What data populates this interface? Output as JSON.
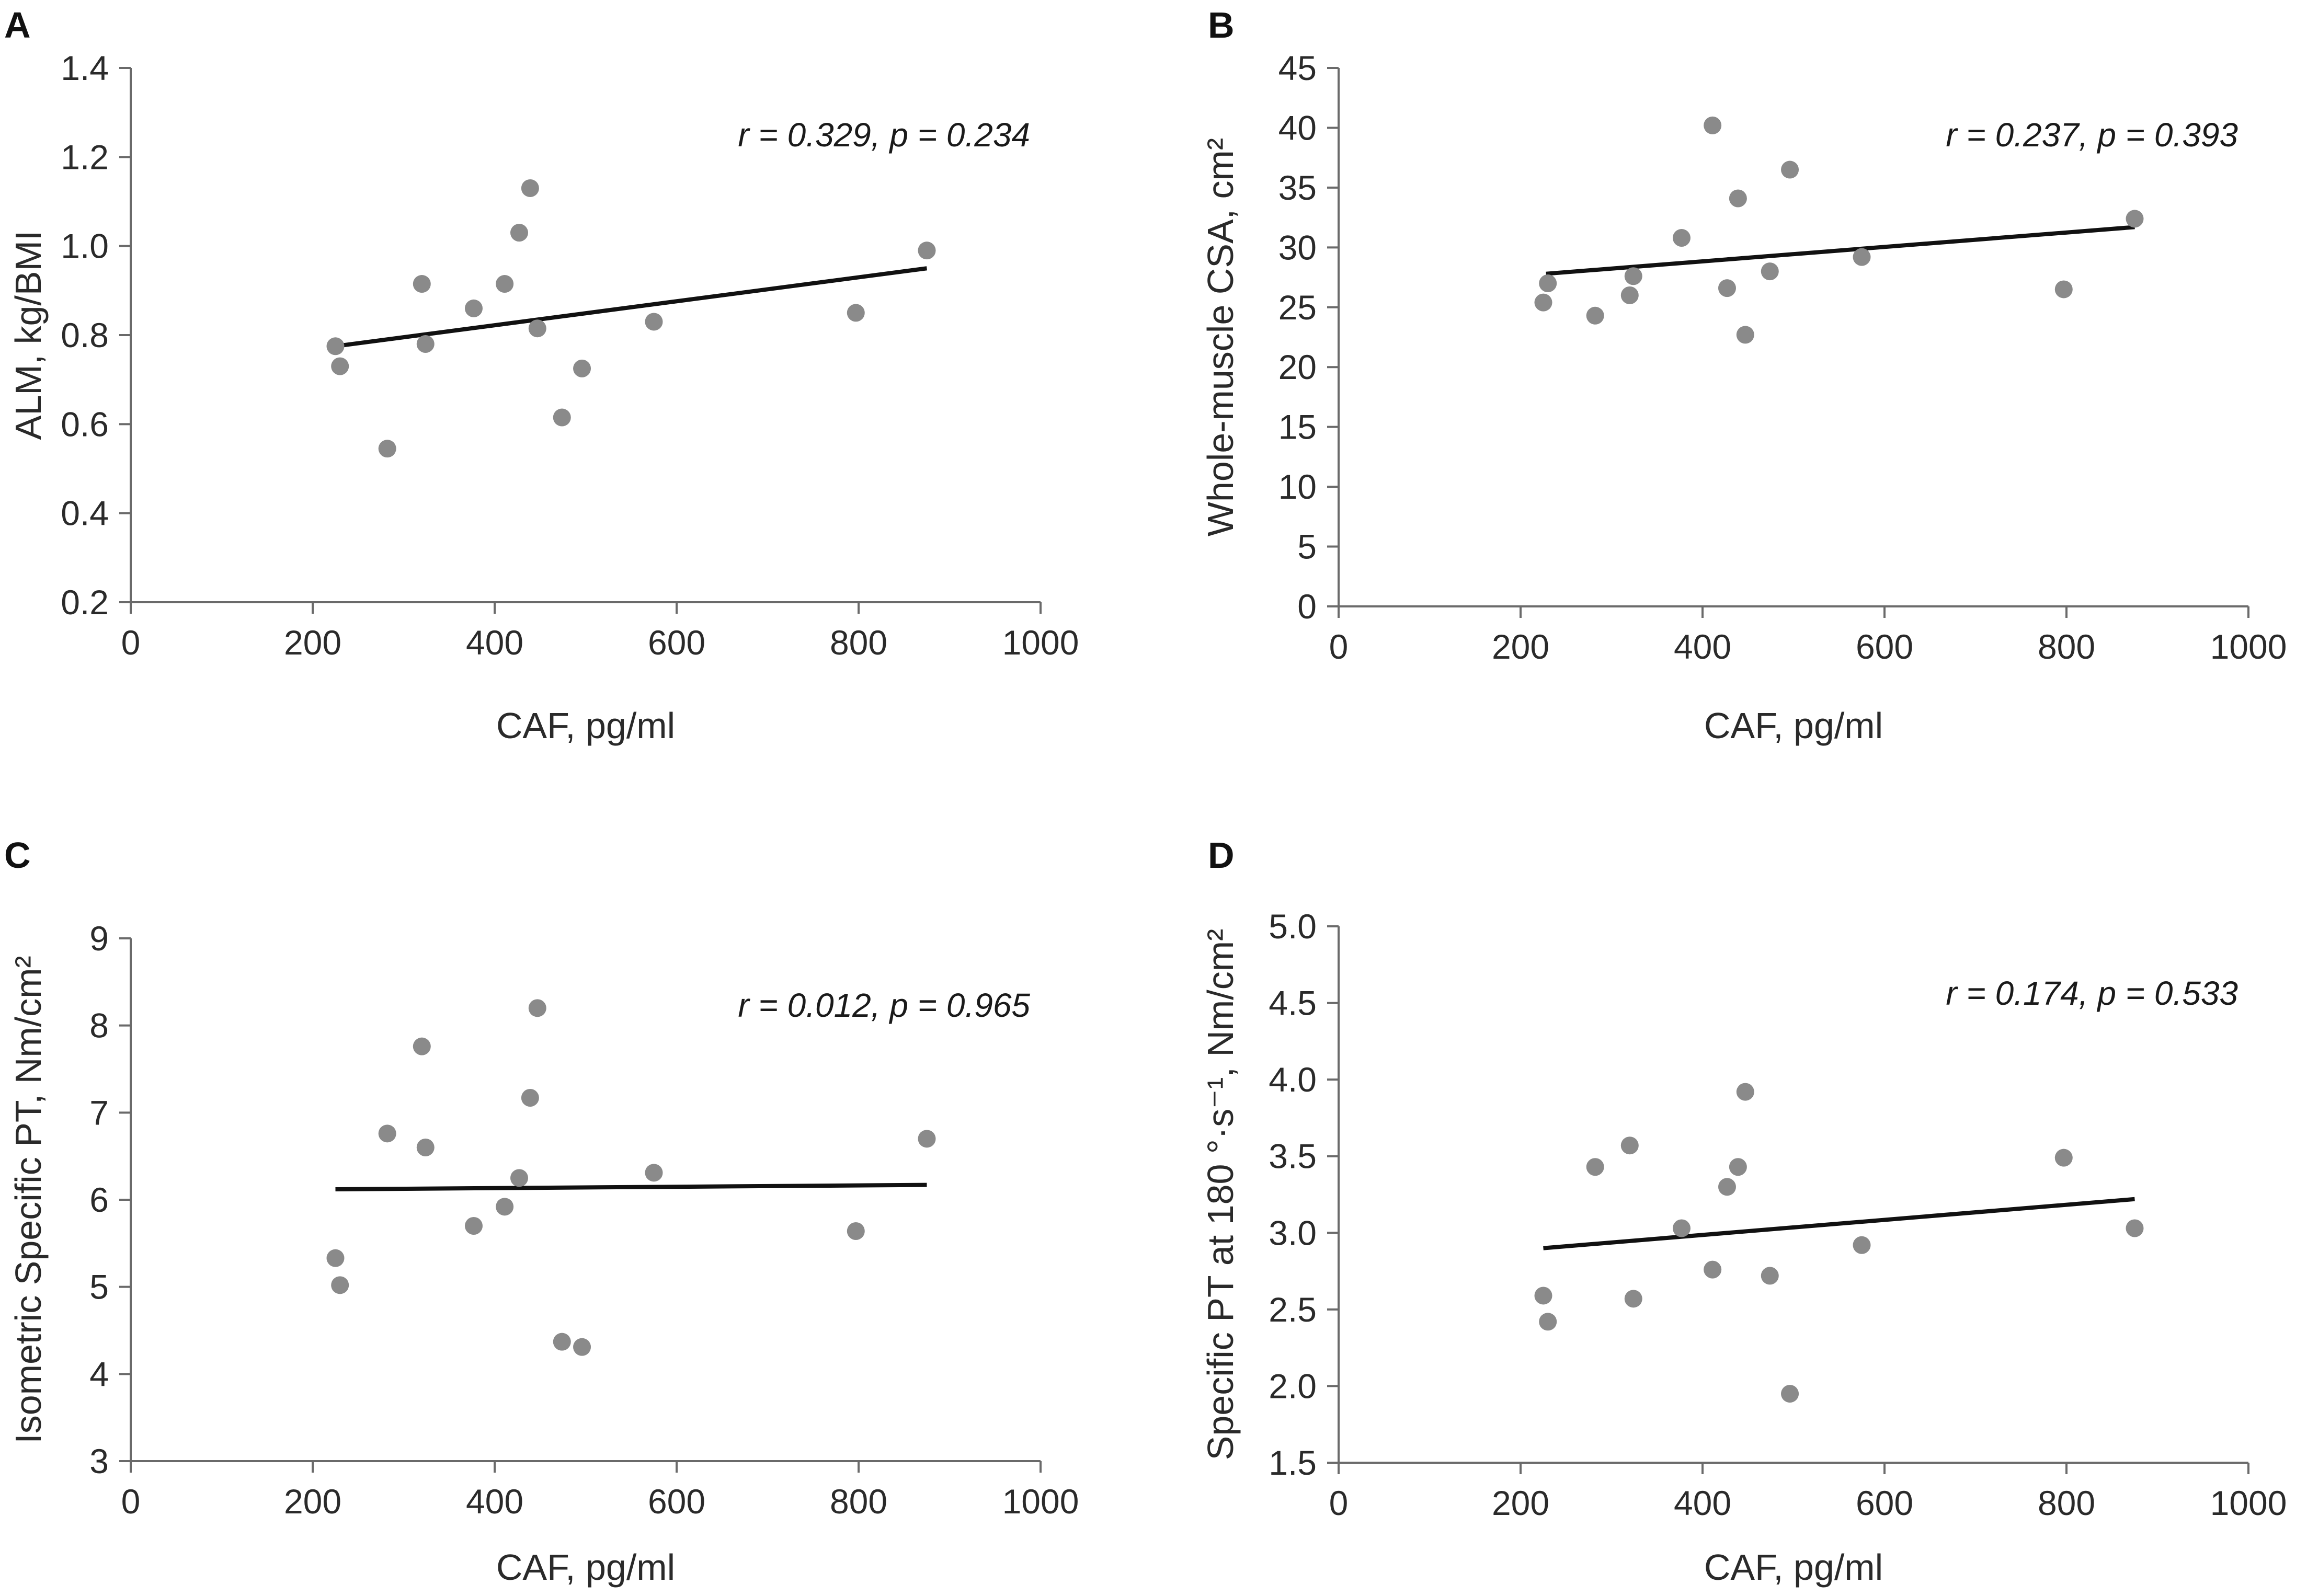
{
  "figure": {
    "point_color": "#8a8a8a",
    "line_color": "#111111",
    "axis_color": "#6a6a6a"
  },
  "chart_data": [
    {
      "panel": "A",
      "type": "scatter",
      "xlabel": "CAF, pg/ml",
      "ylabel": "ALM, kg/BMI",
      "annotation": "r = 0.329, p = 0.234",
      "xlim": [
        0,
        1000
      ],
      "ylim": [
        0.2,
        1.4
      ],
      "xticks": [
        0,
        200,
        400,
        600,
        800,
        1000
      ],
      "xtick_labels": [
        "0",
        "200",
        "400",
        "600",
        "800",
        "1000"
      ],
      "yticks": [
        0.2,
        0.4,
        0.6,
        0.8,
        1.0,
        1.2,
        1.4
      ],
      "ytick_labels": [
        "0.2",
        "0.4",
        "0.6",
        "0.8",
        "1.0",
        "1.2",
        "1.4"
      ],
      "points": [
        [
          225,
          0.775
        ],
        [
          230,
          0.73
        ],
        [
          282,
          0.545
        ],
        [
          320,
          0.915
        ],
        [
          324,
          0.78
        ],
        [
          377,
          0.86
        ],
        [
          411,
          0.915
        ],
        [
          427,
          1.03
        ],
        [
          439,
          1.13
        ],
        [
          447,
          0.815
        ],
        [
          474,
          0.615
        ],
        [
          496,
          0.725
        ],
        [
          575,
          0.83
        ],
        [
          797,
          0.85
        ],
        [
          875,
          0.99
        ]
      ],
      "trendline": [
        [
          225,
          0.775
        ],
        [
          875,
          0.95
        ]
      ]
    },
    {
      "panel": "B",
      "type": "scatter",
      "xlabel": "CAF, pg/ml",
      "ylabel": "Whole-muscle CSA, cm²",
      "annotation": "r = 0.237, p = 0.393",
      "xlim": [
        0,
        1000
      ],
      "ylim": [
        0,
        45
      ],
      "xticks": [
        0,
        200,
        400,
        600,
        800,
        1000
      ],
      "xtick_labels": [
        "0",
        "200",
        "400",
        "600",
        "800",
        "1000"
      ],
      "yticks": [
        0,
        5,
        10,
        15,
        20,
        25,
        30,
        35,
        40,
        45
      ],
      "ytick_labels": [
        "0",
        "5",
        "10",
        "15",
        "20",
        "25",
        "30",
        "35",
        "40",
        "45"
      ],
      "points": [
        [
          225,
          25.4
        ],
        [
          230,
          27.0
        ],
        [
          282,
          24.3
        ],
        [
          320,
          26.0
        ],
        [
          324,
          27.6
        ],
        [
          377,
          30.8
        ],
        [
          411,
          40.2
        ],
        [
          427,
          26.6
        ],
        [
          439,
          34.1
        ],
        [
          447,
          22.7
        ],
        [
          474,
          28.0
        ],
        [
          496,
          36.5
        ],
        [
          575,
          29.2
        ],
        [
          797,
          26.5
        ],
        [
          875,
          32.4
        ]
      ],
      "trendline": [
        [
          228,
          27.8
        ],
        [
          875,
          31.7
        ]
      ]
    },
    {
      "panel": "C",
      "type": "scatter",
      "xlabel": "CAF, pg/ml",
      "ylabel": "Isometric Specific PT, Nm/cm²",
      "annotation": "r = 0.012, p = 0.965",
      "xlim": [
        0,
        1000
      ],
      "ylim": [
        3,
        9
      ],
      "xticks": [
        0,
        200,
        400,
        600,
        800,
        1000
      ],
      "xtick_labels": [
        "0",
        "200",
        "400",
        "600",
        "800",
        "1000"
      ],
      "yticks": [
        3,
        4,
        5,
        6,
        7,
        8,
        9
      ],
      "ytick_labels": [
        "3",
        "4",
        "5",
        "6",
        "7",
        "8",
        "9"
      ],
      "points": [
        [
          225,
          5.33
        ],
        [
          230,
          5.02
        ],
        [
          282,
          6.76
        ],
        [
          320,
          7.76
        ],
        [
          324,
          6.6
        ],
        [
          377,
          5.7
        ],
        [
          411,
          5.92
        ],
        [
          427,
          6.25
        ],
        [
          439,
          7.17
        ],
        [
          447,
          8.2
        ],
        [
          474,
          4.37
        ],
        [
          496,
          4.31
        ],
        [
          575,
          6.31
        ],
        [
          797,
          5.64
        ],
        [
          875,
          6.7
        ]
      ],
      "trendline": [
        [
          225,
          6.12
        ],
        [
          875,
          6.17
        ]
      ]
    },
    {
      "panel": "D",
      "type": "scatter",
      "xlabel": "CAF, pg/ml",
      "ylabel": "Specific PT at 180 °·s⁻¹, Nm/cm²",
      "annotation": "r = 0.174, p = 0.533",
      "xlim": [
        0,
        1000
      ],
      "ylim": [
        1.5,
        5.0
      ],
      "xticks": [
        0,
        200,
        400,
        600,
        800,
        1000
      ],
      "xtick_labels": [
        "0",
        "200",
        "400",
        "600",
        "800",
        "1000"
      ],
      "yticks": [
        1.5,
        2.0,
        2.5,
        3.0,
        3.5,
        4.0,
        4.5,
        5.0
      ],
      "ytick_labels": [
        "1.5",
        "2.0",
        "2.5",
        "3.0",
        "3.5",
        "4.0",
        "4.5",
        "5.0"
      ],
      "points": [
        [
          225,
          2.59
        ],
        [
          230,
          2.42
        ],
        [
          282,
          3.43
        ],
        [
          320,
          3.57
        ],
        [
          324,
          2.57
        ],
        [
          377,
          3.03
        ],
        [
          411,
          2.76
        ],
        [
          427,
          3.3
        ],
        [
          439,
          3.43
        ],
        [
          447,
          3.92
        ],
        [
          474,
          2.72
        ],
        [
          496,
          1.95
        ],
        [
          575,
          2.92
        ],
        [
          797,
          3.49
        ],
        [
          875,
          3.03
        ]
      ],
      "trendline": [
        [
          225,
          2.9
        ],
        [
          875,
          3.22
        ]
      ]
    }
  ]
}
